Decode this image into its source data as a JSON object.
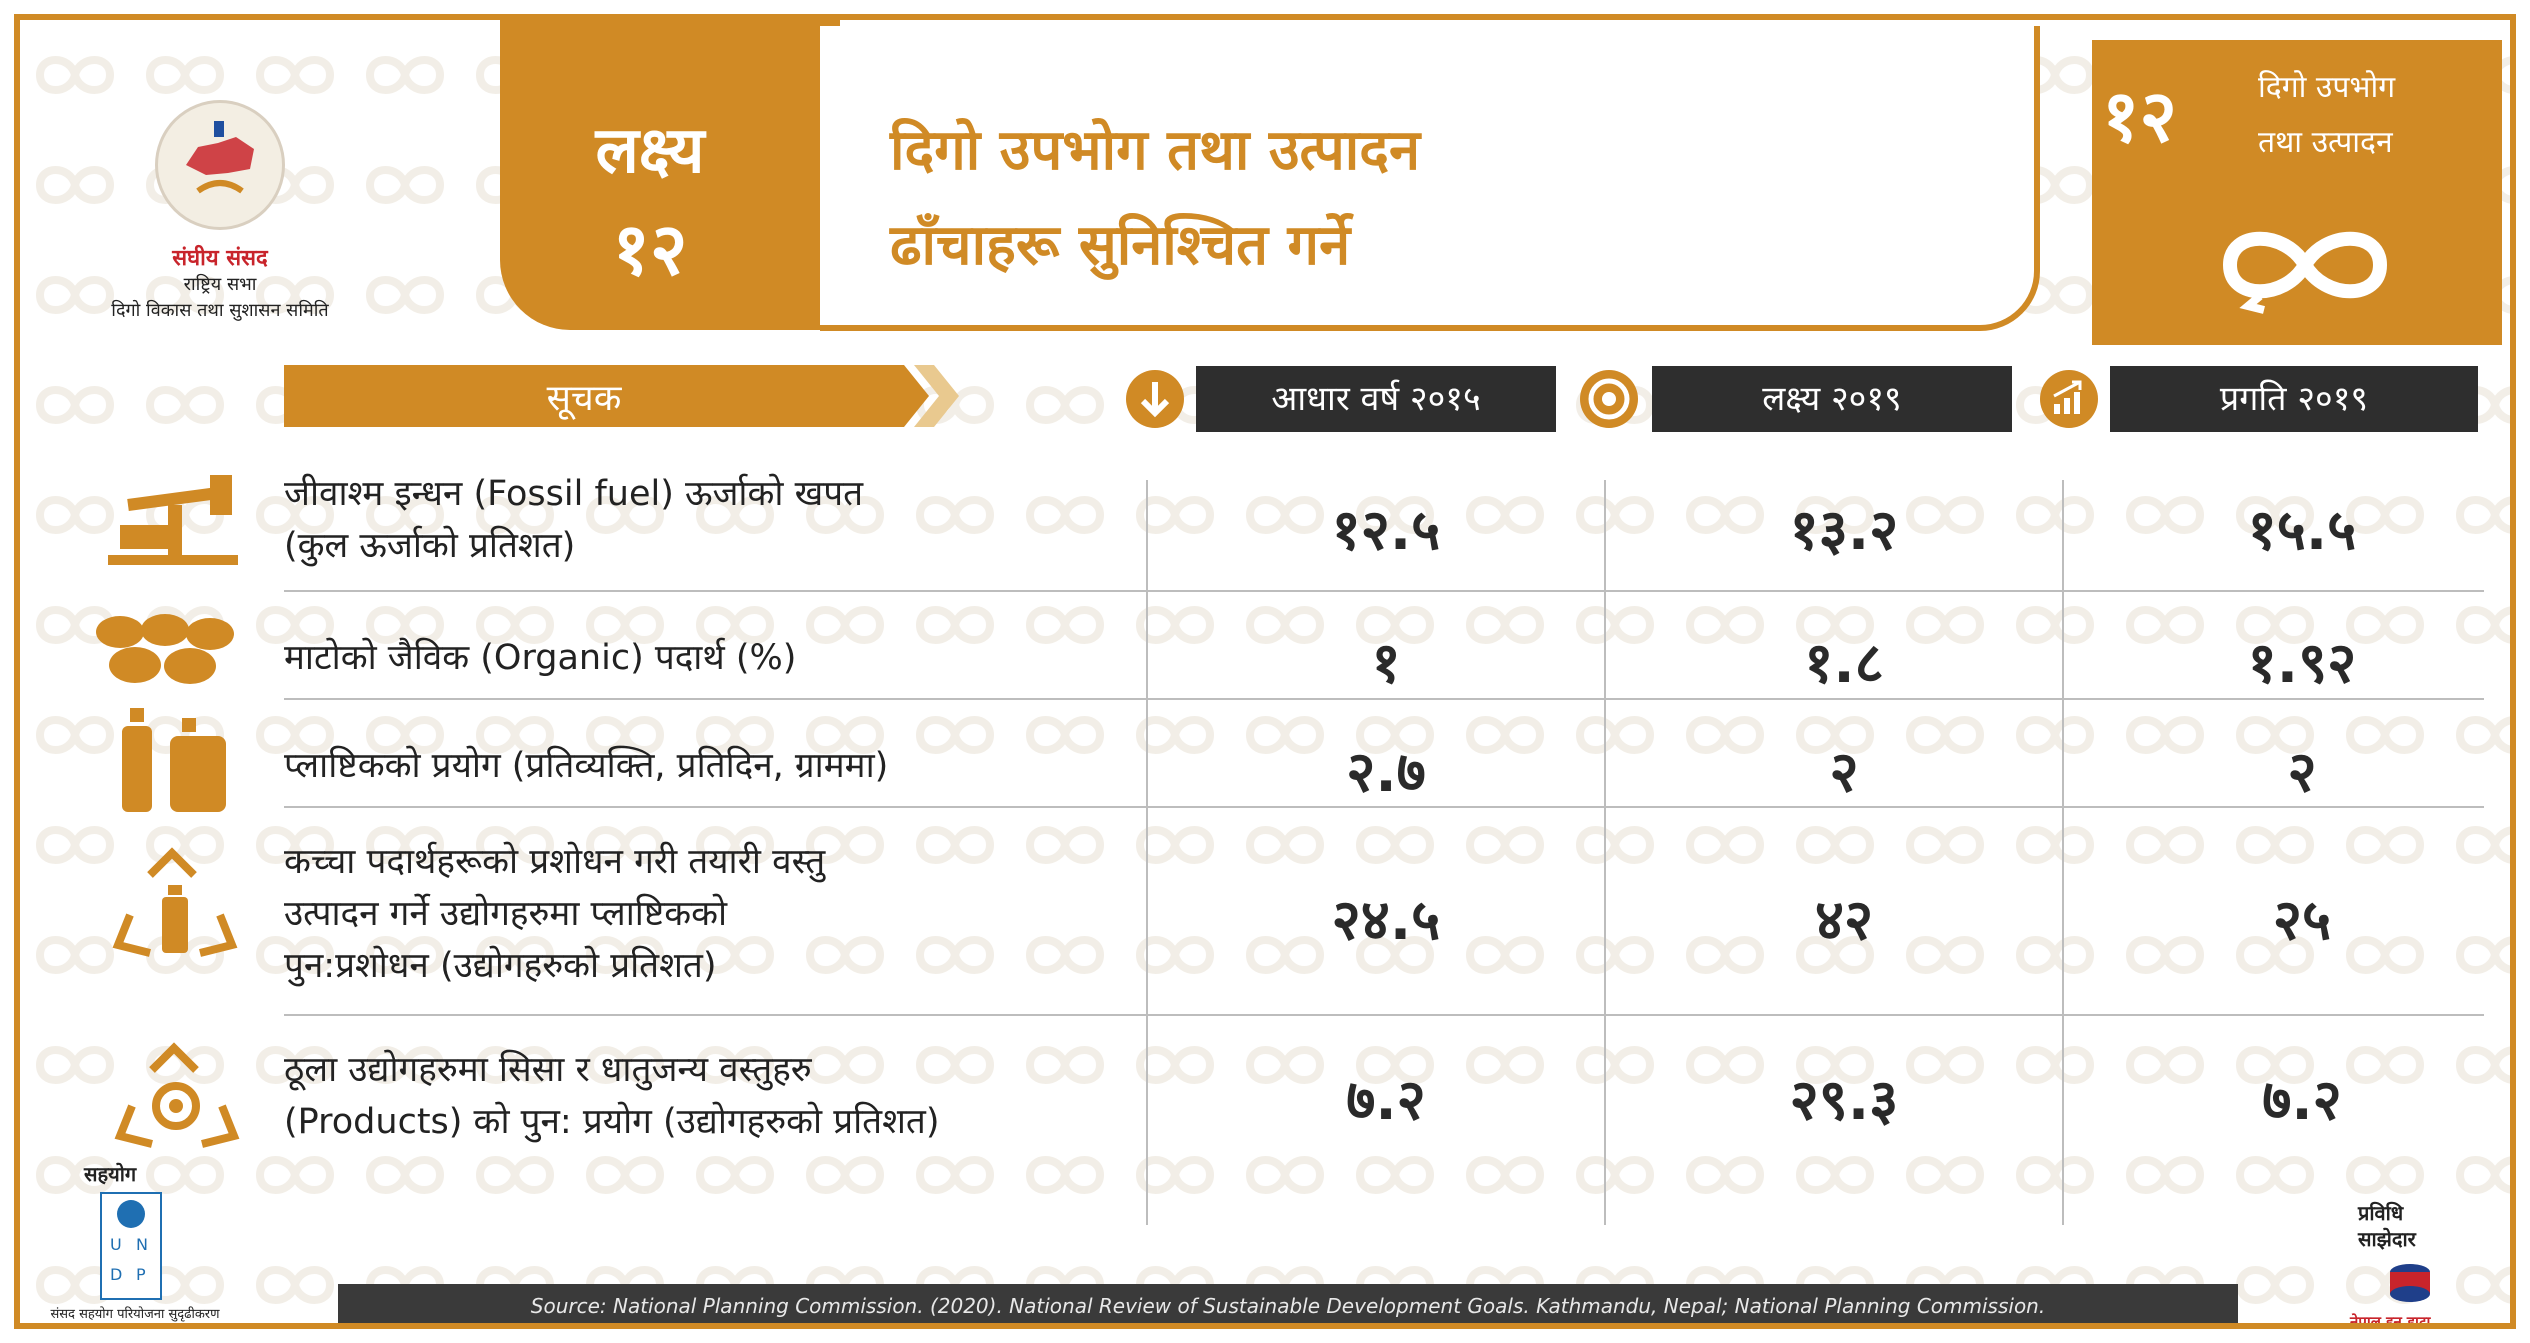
{
  "logo": {
    "name": "संघीय संसद",
    "sub1": "राष्ट्रिय सभा",
    "sub2": "दिगो विकास तथा सुशासन समिति"
  },
  "goal": {
    "word": "लक्ष्य",
    "number": "१२",
    "title_line1": "दिगो उपभोग तथा उत्पादन",
    "title_line2": "ढाँचाहरू सुनिश्चित गर्ने"
  },
  "sdg_badge": {
    "number": "१२",
    "text_line1": "दिगो उपभोग",
    "text_line2": "तथा उत्पादन",
    "icon": "infinity-icon"
  },
  "columns": {
    "indicator": "सूचक",
    "baseline": "आधार वर्ष २०१५",
    "target": "लक्ष्य २०१९",
    "progress": "प्रगति २०१९",
    "baseline_icon": "arrow-down-icon",
    "target_icon": "target-icon",
    "progress_icon": "growth-chart-icon"
  },
  "rows": [
    {
      "icon": "oil-pump-icon",
      "label_lines": [
        "जीवाश्म इन्धन (Fossil fuel) ऊर्जाको खपत",
        "(कुल ऊर्जाको प्रतिशत)"
      ],
      "baseline": "१२.५",
      "target": "१३.२",
      "progress": "१५.५"
    },
    {
      "icon": "soil-icon",
      "label_lines": [
        "माटोको जैविक (Organic) पदार्थ (%)"
      ],
      "baseline": "१",
      "target": "१.८",
      "progress": "१.९२"
    },
    {
      "icon": "plastic-bottles-icon",
      "label_lines": [
        "प्लाष्टिकको प्रयोग (प्रतिव्यक्ति, प्रतिदिन, ग्राममा)"
      ],
      "baseline": "२.७",
      "target": "२",
      "progress": "२"
    },
    {
      "icon": "recycle-bottle-icon",
      "label_lines": [
        "कच्चा पदार्थहरूको प्रशोधन गरी तयारी वस्तु",
        "उत्पादन गर्ने उद्योगहरुमा प्लाष्टिकको",
        "पुन:प्रशोधन (उद्योगहरुको प्रतिशत)"
      ],
      "baseline": "२४.५",
      "target": "४२",
      "progress": "२५"
    },
    {
      "icon": "recycle-gear-icon",
      "label_lines": [
        "ठूला उद्योगहरुमा सिसा र धातुजन्य वस्तुहरु",
        "(Products) को पुन: प्रयोग (उद्योगहरुको प्रतिशत)"
      ],
      "baseline": "७.२",
      "target": "२९.३",
      "progress": "७.२"
    }
  ],
  "footer": {
    "support_label": "सहयोग",
    "undp_letters": [
      "U",
      "N",
      "D",
      "P"
    ],
    "undp_caption": "संसद सहयोग परियोजना सुदृढीकरण",
    "source": "Source: National Planning Commission. (2020). National Review of Sustainable Development Goals. Kathmandu, Nepal; National Planning Commission.",
    "tech_partner_label_line1": "प्रविधि",
    "tech_partner_label_line2": "साझेदार",
    "tech_partner_name": "नेपाल इन डाटा"
  },
  "colors": {
    "accent": "#d08a25",
    "dark": "#2e2e2e",
    "logo_red": "#c8242b",
    "undp_blue": "#1f6fb2"
  }
}
